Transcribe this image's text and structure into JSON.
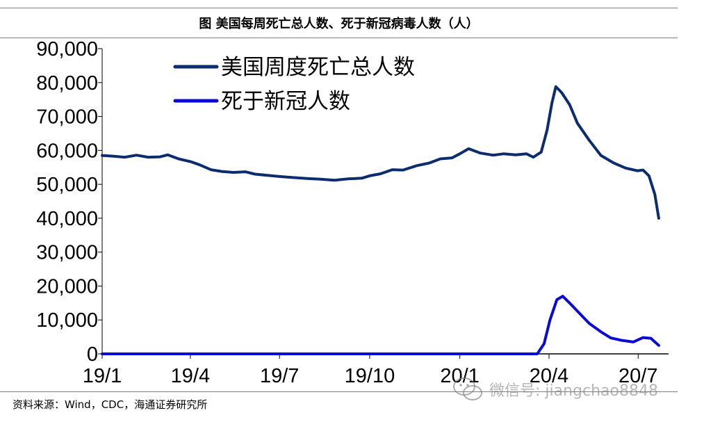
{
  "header": {
    "title": "图  美国每周死亡总人数、死于新冠病毒人数（人）"
  },
  "footer": {
    "source": "资料来源：Wind，CDC，海通证券研究所"
  },
  "watermark": {
    "text": "微信号: jiangchao8848",
    "icon": "wechat-icon"
  },
  "colors": {
    "total": "#0b2c6e",
    "covid": "#0a0ad8",
    "axis": "#000000"
  },
  "chart_data": {
    "type": "line",
    "title": "图  美国每周死亡总人数、死于新冠病毒人数（人）",
    "ylim": [
      0,
      90000
    ],
    "yticks": [
      0,
      10000,
      20000,
      30000,
      40000,
      50000,
      60000,
      70000,
      80000,
      90000
    ],
    "ytick_labels": [
      "0",
      "10,000",
      "20,000",
      "30,000",
      "40,000",
      "50,000",
      "60,000",
      "70,000",
      "80,000",
      "90,000"
    ],
    "xlim": [
      "2019-01-01",
      "2020-08-01"
    ],
    "xticks": [
      "2019-01-01",
      "2019-04-01",
      "2019-07-01",
      "2019-10-01",
      "2020-01-01",
      "2020-04-01",
      "2020-07-01"
    ],
    "xtick_labels": [
      "19/1",
      "19/4",
      "19/7",
      "19/10",
      "20/1",
      "20/4",
      "20/7"
    ],
    "grid": false,
    "legend": "top-left",
    "series": [
      {
        "name": "美国周度死亡总人数",
        "points": [
          [
            "2019-01-01",
            58500
          ],
          [
            "2019-01-12",
            58300
          ],
          [
            "2019-01-24",
            58000
          ],
          [
            "2019-02-05",
            58600
          ],
          [
            "2019-02-17",
            58000
          ],
          [
            "2019-03-01",
            58100
          ],
          [
            "2019-03-09",
            58700
          ],
          [
            "2019-03-20",
            57500
          ],
          [
            "2019-04-01",
            56700
          ],
          [
            "2019-04-10",
            55800
          ],
          [
            "2019-04-22",
            54300
          ],
          [
            "2019-05-03",
            53800
          ],
          [
            "2019-05-15",
            53500
          ],
          [
            "2019-05-27",
            53700
          ],
          [
            "2019-06-06",
            53000
          ],
          [
            "2019-06-20",
            52600
          ],
          [
            "2019-07-01",
            52300
          ],
          [
            "2019-07-15",
            52000
          ],
          [
            "2019-07-29",
            51700
          ],
          [
            "2019-08-12",
            51500
          ],
          [
            "2019-08-26",
            51200
          ],
          [
            "2019-09-09",
            51600
          ],
          [
            "2019-09-23",
            51800
          ],
          [
            "2019-10-01",
            52500
          ],
          [
            "2019-10-12",
            53100
          ],
          [
            "2019-10-24",
            54300
          ],
          [
            "2019-11-04",
            54200
          ],
          [
            "2019-11-18",
            55500
          ],
          [
            "2019-12-01",
            56300
          ],
          [
            "2019-12-12",
            57500
          ],
          [
            "2019-12-24",
            57800
          ],
          [
            "2020-01-01",
            59000
          ],
          [
            "2020-01-10",
            60500
          ],
          [
            "2020-01-22",
            59200
          ],
          [
            "2020-02-04",
            58600
          ],
          [
            "2020-02-15",
            59000
          ],
          [
            "2020-02-27",
            58700
          ],
          [
            "2020-03-09",
            59000
          ],
          [
            "2020-03-16",
            58000
          ],
          [
            "2020-03-24",
            59500
          ],
          [
            "2020-03-30",
            66000
          ],
          [
            "2020-04-04",
            74000
          ],
          [
            "2020-04-08",
            78800
          ],
          [
            "2020-04-14",
            77000
          ],
          [
            "2020-04-22",
            73500
          ],
          [
            "2020-04-30",
            68000
          ],
          [
            "2020-05-12",
            63000
          ],
          [
            "2020-05-24",
            58500
          ],
          [
            "2020-06-06",
            56300
          ],
          [
            "2020-06-18",
            54800
          ],
          [
            "2020-06-30",
            54000
          ],
          [
            "2020-07-06",
            54200
          ],
          [
            "2020-07-12",
            52500
          ],
          [
            "2020-07-18",
            47000
          ],
          [
            "2020-07-22",
            40000
          ]
        ]
      },
      {
        "name": "死于新冠人数",
        "points": [
          [
            "2019-01-01",
            0
          ],
          [
            "2020-03-20",
            0
          ],
          [
            "2020-03-27",
            3000
          ],
          [
            "2020-04-02",
            10000
          ],
          [
            "2020-04-09",
            16000
          ],
          [
            "2020-04-15",
            17000
          ],
          [
            "2020-04-22",
            15000
          ],
          [
            "2020-05-02",
            12000
          ],
          [
            "2020-05-12",
            9000
          ],
          [
            "2020-05-24",
            6500
          ],
          [
            "2020-06-03",
            4700
          ],
          [
            "2020-06-14",
            4000
          ],
          [
            "2020-06-26",
            3500
          ],
          [
            "2020-07-06",
            4800
          ],
          [
            "2020-07-14",
            4600
          ],
          [
            "2020-07-22",
            2500
          ]
        ]
      }
    ]
  }
}
